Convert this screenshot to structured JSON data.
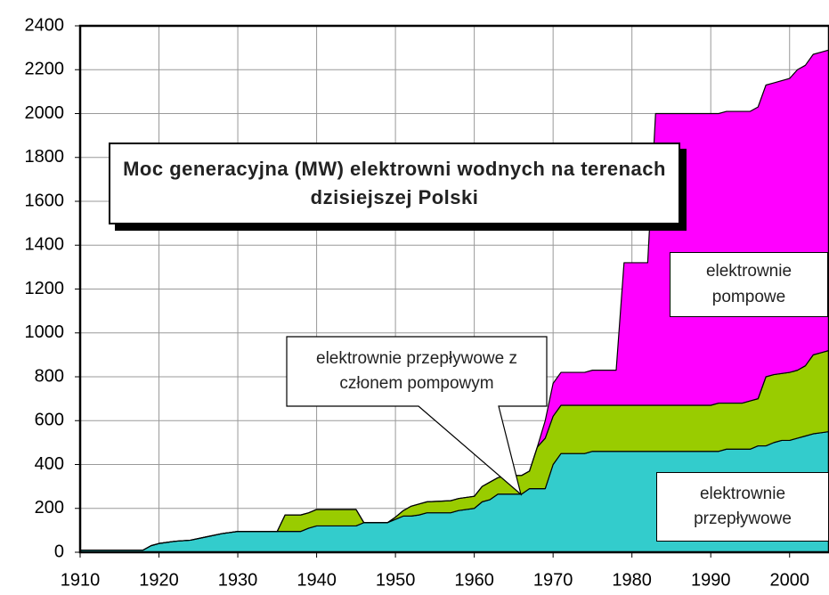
{
  "chart_data": {
    "type": "stacked_area",
    "title": "Moc generacyjna (MW) elektrowni wodnych na terenach dzisiejszej Polski",
    "x": [
      1910,
      1918,
      1919,
      1920,
      1922,
      1924,
      1926,
      1928,
      1930,
      1935,
      1936,
      1938,
      1939,
      1940,
      1945,
      1946,
      1949,
      1950,
      1951,
      1952,
      1953,
      1954,
      1957,
      1958,
      1960,
      1961,
      1962,
      1963,
      1964,
      1966,
      1967,
      1968,
      1969,
      1970,
      1971,
      1974,
      1975,
      1978,
      1979,
      1982,
      1983,
      1990,
      1991,
      1992,
      1994,
      1995,
      1996,
      1997,
      1998,
      1999,
      2000,
      2001,
      2002,
      2003,
      2004,
      2005
    ],
    "series": [
      {
        "name": "elektrownie przepływowe",
        "color": "#33cccc",
        "values": [
          10,
          10,
          30,
          40,
          50,
          55,
          70,
          85,
          95,
          95,
          95,
          95,
          110,
          120,
          120,
          135,
          135,
          150,
          165,
          165,
          170,
          180,
          180,
          190,
          200,
          230,
          240,
          265,
          265,
          265,
          290,
          290,
          290,
          400,
          450,
          450,
          460,
          460,
          460,
          460,
          460,
          460,
          460,
          470,
          470,
          470,
          485,
          485,
          500,
          510,
          510,
          520,
          530,
          540,
          545,
          550
        ]
      },
      {
        "name": "elektrownie przepływowe z członem pompowym",
        "color": "#99cc00",
        "values": [
          0,
          0,
          0,
          0,
          0,
          0,
          0,
          0,
          0,
          0,
          75,
          75,
          70,
          75,
          75,
          0,
          0,
          10,
          25,
          45,
          50,
          50,
          55,
          55,
          55,
          70,
          80,
          75,
          85,
          85,
          80,
          190,
          230,
          220,
          220,
          220,
          210,
          210,
          210,
          210,
          210,
          210,
          220,
          210,
          210,
          220,
          215,
          315,
          310,
          305,
          310,
          310,
          320,
          360,
          365,
          370
        ]
      },
      {
        "name": "elektrownie pompowe",
        "color": "#ff00ff",
        "values": [
          0,
          0,
          0,
          0,
          0,
          0,
          0,
          0,
          0,
          0,
          0,
          0,
          0,
          0,
          0,
          0,
          0,
          0,
          0,
          0,
          0,
          0,
          0,
          0,
          0,
          0,
          0,
          0,
          0,
          0,
          0,
          0,
          80,
          150,
          150,
          150,
          160,
          160,
          650,
          650,
          1330,
          1330,
          1320,
          1330,
          1330,
          1320,
          1330,
          1330,
          1330,
          1335,
          1340,
          1370,
          1370,
          1370,
          1370,
          1370
        ]
      }
    ],
    "xlim": [
      1910,
      2005
    ],
    "xticks": [
      1910,
      1920,
      1930,
      1940,
      1950,
      1960,
      1970,
      1980,
      1990,
      2000
    ],
    "ylim": [
      0,
      2400
    ],
    "yticks": [
      0,
      200,
      400,
      600,
      800,
      1000,
      1200,
      1400,
      1600,
      1800,
      2000,
      2200,
      2400
    ],
    "grid": true
  }
}
